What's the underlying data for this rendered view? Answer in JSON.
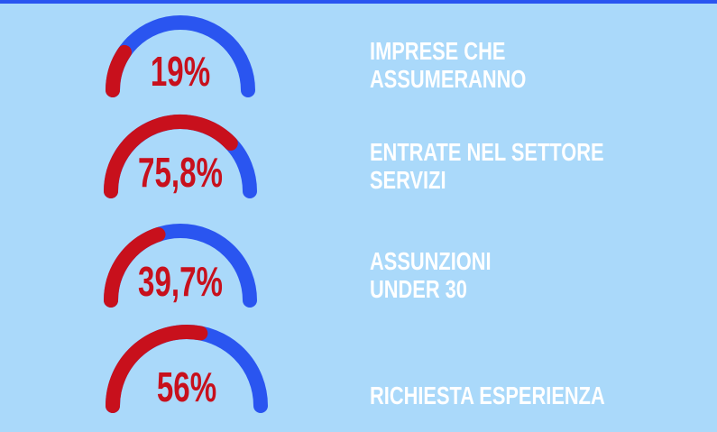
{
  "chart_data": [
    {
      "type": "gauge",
      "title": [
        "IMPRESE CHE",
        "ASSUMERANNO"
      ],
      "values": [
        19
      ],
      "value_labels": [
        "19%"
      ],
      "ylim": [
        0,
        100
      ],
      "color": "#c8101c",
      "track_color": "#2a55f0"
    },
    {
      "type": "gauge",
      "title": [
        "ENTRATE NEL SETTORE",
        "SERVIZI"
      ],
      "values": [
        75.8
      ],
      "value_labels": [
        "75,8%"
      ],
      "ylim": [
        0,
        100
      ],
      "color": "#c8101c",
      "track_color": "#2a55f0"
    },
    {
      "type": "gauge",
      "title": [
        "ASSUNZIONI",
        "UNDER 30"
      ],
      "values": [
        39.7
      ],
      "value_labels": [
        "39,7%"
      ],
      "ylim": [
        0,
        100
      ],
      "color": "#c8101c",
      "track_color": "#2a55f0"
    },
    {
      "type": "gauge",
      "title": [
        "RICHIESTA ESPERIENZA"
      ],
      "values": [
        56
      ],
      "value_labels": [
        "56%"
      ],
      "ylim": [
        0,
        100
      ],
      "color": "#c8101c",
      "track_color": "#2a55f0"
    }
  ]
}
